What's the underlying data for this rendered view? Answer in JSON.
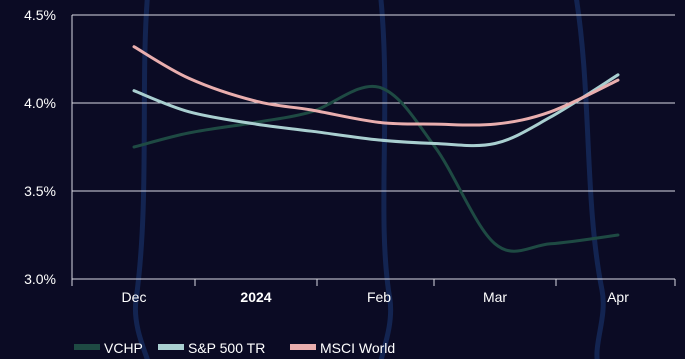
{
  "chart_data": {
    "type": "line",
    "title": "",
    "xlabel": "",
    "ylabel": "",
    "x_ticks": [
      {
        "label": "Dec",
        "bold": false
      },
      {
        "label": "2024",
        "bold": true
      },
      {
        "label": "Feb",
        "bold": false
      },
      {
        "label": "Mar",
        "bold": false
      },
      {
        "label": "Apr",
        "bold": false
      }
    ],
    "y_ticks": [
      "3.0%",
      "3.5%",
      "4.0%",
      "4.5%"
    ],
    "y_tick_values": [
      3.0,
      3.5,
      4.0,
      4.5
    ],
    "ylim": [
      3.0,
      4.5
    ],
    "x_tick_dates": [
      "2023-12-01",
      "2024-01-01",
      "2024-02-01",
      "2024-03-01",
      "2024-04-01"
    ],
    "x": [
      "2023-12-01",
      "2023-12-15",
      "2024-01-01",
      "2024-01-15",
      "2024-02-01",
      "2024-02-15",
      "2024-03-01",
      "2024-03-15",
      "2024-04-01"
    ],
    "series": [
      {
        "name": "VCHP",
        "color": "#1e4a43",
        "values": [
          3.75,
          3.83,
          3.89,
          3.95,
          4.09,
          3.75,
          3.2,
          3.2,
          3.25
        ]
      },
      {
        "name": "S&P 500 TR",
        "color": "#a9cfd0",
        "values": [
          4.07,
          3.95,
          3.88,
          3.84,
          3.79,
          3.77,
          3.77,
          3.92,
          4.16
        ]
      },
      {
        "name": "MSCI World",
        "color": "#e9aeae",
        "values": [
          4.32,
          4.14,
          4.01,
          3.96,
          3.89,
          3.88,
          3.88,
          3.95,
          4.13
        ]
      }
    ],
    "grid": true,
    "legend_position": "bottom-left"
  }
}
